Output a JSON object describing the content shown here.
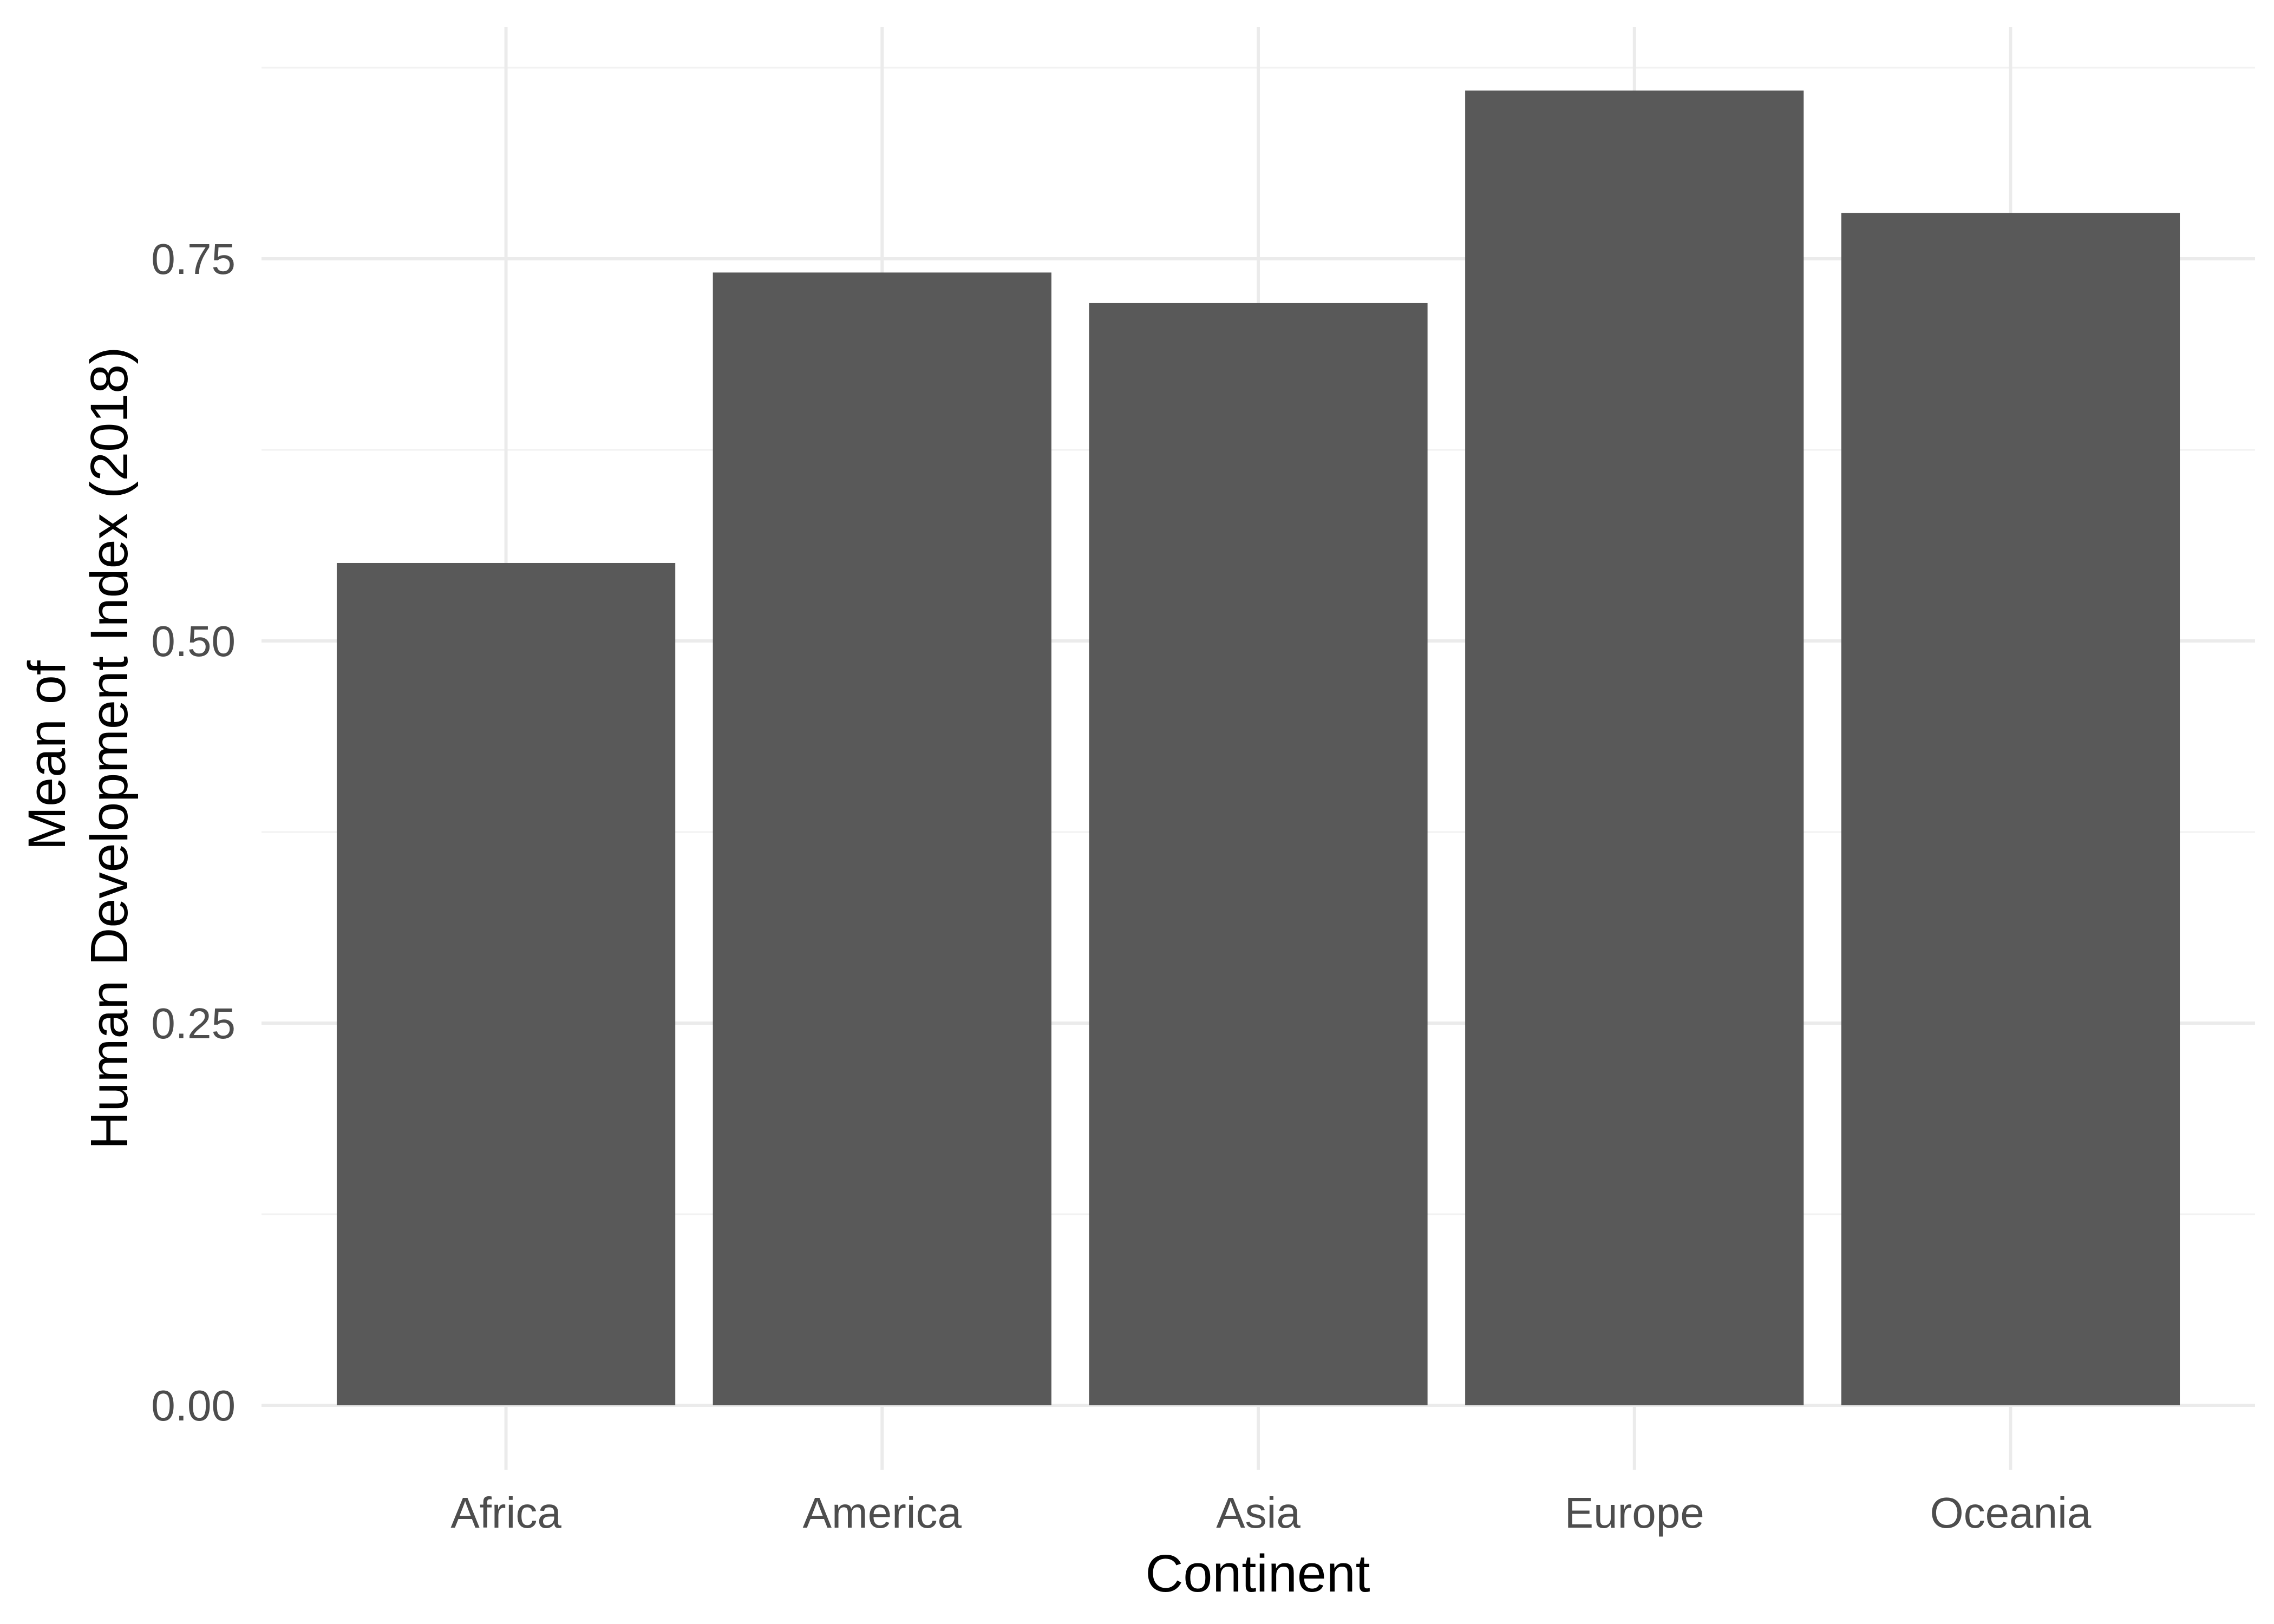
{
  "chart_data": {
    "type": "bar",
    "title": "",
    "xlabel": "Continent",
    "ylabel_lines": [
      "Mean of",
      "Human Development Index (2018)"
    ],
    "categories": [
      "Africa",
      "America",
      "Asia",
      "Europe",
      "Oceania"
    ],
    "values": [
      0.551,
      0.741,
      0.721,
      0.86,
      0.78
    ],
    "ylim": [
      0,
      0.875
    ],
    "yticks": [
      0.0,
      0.25,
      0.5,
      0.75
    ],
    "ytick_labels": [
      "0.00",
      "0.25",
      "0.50",
      "0.75"
    ],
    "yminor": [
      0.125,
      0.375,
      0.625,
      0.875
    ],
    "grid": true,
    "legend": "none",
    "colors": {
      "bar": "#595959",
      "grid_major": "#ebebeb",
      "grid_minor": "#f2f2f2",
      "text": "#4d4d4d"
    }
  }
}
